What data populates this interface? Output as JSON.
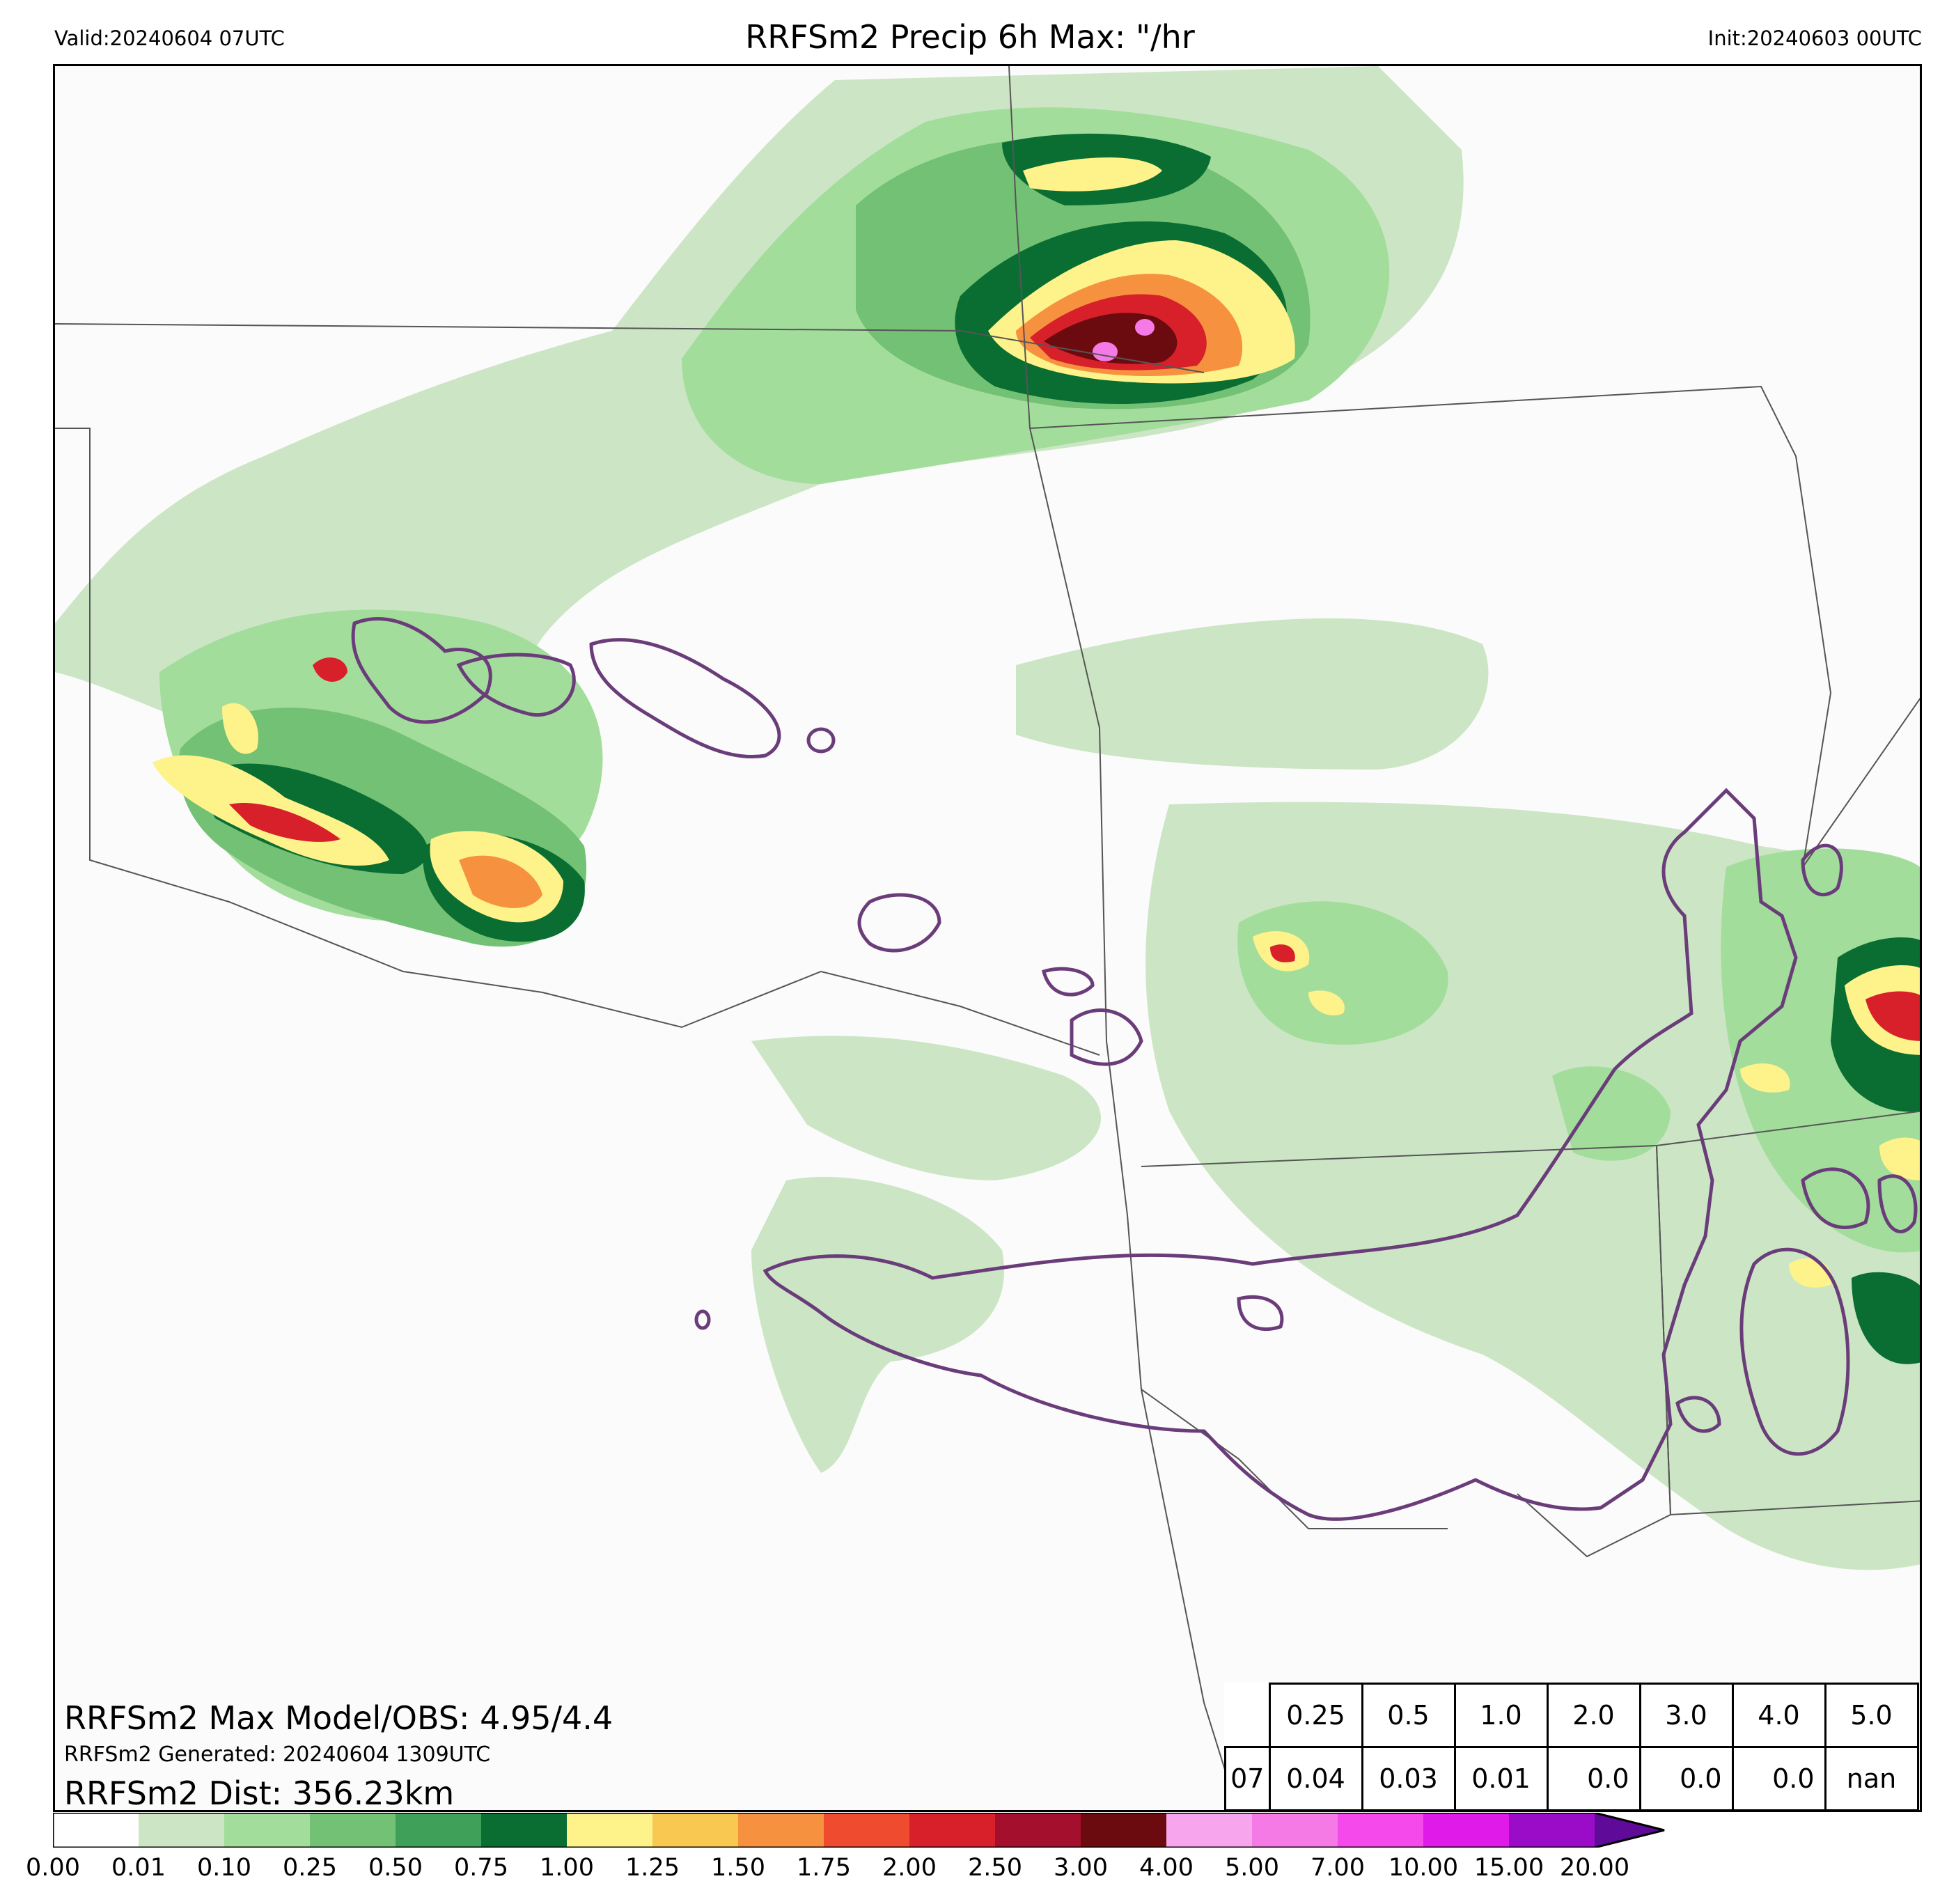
{
  "header": {
    "valid": "Valid:20240604 07UTC",
    "title": "RRFSm2 Precip 6h Max: \"/hr",
    "init": "Init:20240603 00UTC"
  },
  "stats": {
    "max": "RRFSm2 Max Model/OBS: 4.95/4.4",
    "generated": "RRFSm2 Generated: 20240604 1309UTC",
    "dist": "RRFSm2 Dist: 356.23km"
  },
  "skill_table": {
    "thresholds": [
      "0.25",
      "0.5",
      "1.0",
      "2.0",
      "3.0",
      "4.0",
      "5.0"
    ],
    "row_label": "07",
    "values": [
      "0.04",
      "0.03",
      "0.01",
      "0.0",
      "0.0",
      "0.0",
      "nan"
    ]
  },
  "colorbar": {
    "ticks": [
      "0.00",
      "0.01",
      "0.10",
      "0.25",
      "0.50",
      "0.75",
      "1.00",
      "1.25",
      "1.50",
      "1.75",
      "2.00",
      "2.50",
      "3.00",
      "4.00",
      "5.00",
      "7.00",
      "10.00",
      "15.00",
      "20.00"
    ],
    "colors": [
      "#ffffff",
      "#cce6c5",
      "#a3dd9c",
      "#73c174",
      "#3fa159",
      "#0a6e33",
      "#fef28a",
      "#f9c851",
      "#f6923f",
      "#ef4c2f",
      "#d7202a",
      "#a50f2e",
      "#6c0b0f",
      "#f7a6ee",
      "#f57ae6",
      "#f649ec",
      "#e01ae9",
      "#9a0cc8"
    ],
    "extend_color": "#5f0a99"
  },
  "legend_colors": {
    "light_green": "#cce6c5",
    "green": "#a3dd9c",
    "mid_green": "#73c174",
    "dark_green": "#0a6e33",
    "yellow": "#fef28a",
    "orange": "#f6923f",
    "red": "#d7202a",
    "dark_red": "#6c0b0f",
    "pink": "#f57ae6",
    "obs_contour": "#6a3d7a",
    "borders": "#555555"
  }
}
